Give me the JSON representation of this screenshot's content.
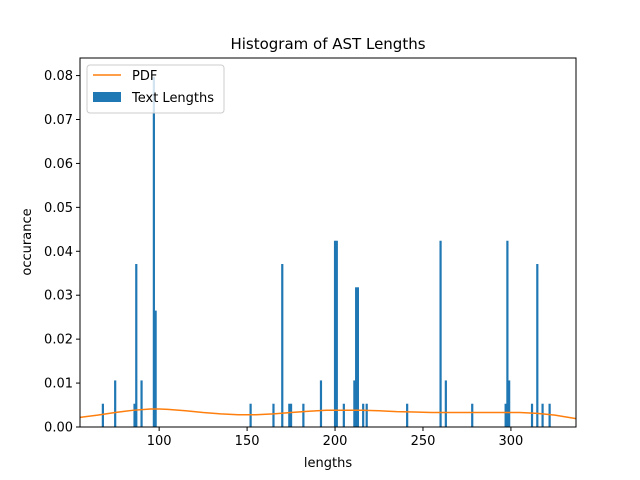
{
  "chart_data": {
    "type": "bar",
    "title": "Histogram of AST Lengths",
    "xlabel": "lengths",
    "ylabel": "occurance",
    "xlim": [
      55,
      337
    ],
    "ylim": [
      0,
      0.084
    ],
    "xticks": [
      100,
      150,
      200,
      250,
      300
    ],
    "yticks": [
      0.0,
      0.01,
      0.02,
      0.03,
      0.04,
      0.05,
      0.06,
      0.07,
      0.08
    ],
    "ytick_labels": [
      "0.00",
      "0.01",
      "0.02",
      "0.03",
      "0.04",
      "0.05",
      "0.06",
      "0.07",
      "0.08"
    ],
    "grid": false,
    "legend_position": "top-left",
    "bar_width": 1.25,
    "series": [
      {
        "name": "Text Lengths",
        "kind": "bar",
        "color": "#1f77b4",
        "x": [
          68,
          75,
          86,
          87,
          90,
          97,
          98,
          152,
          165,
          170,
          174,
          175,
          182,
          192,
          200,
          201,
          205,
          211,
          212,
          213,
          216,
          218,
          241,
          260,
          263,
          278,
          297,
          298,
          299,
          312,
          315,
          318,
          322
        ],
        "values": [
          0.0053,
          0.0106,
          0.0053,
          0.0371,
          0.0106,
          0.0797,
          0.0265,
          0.0053,
          0.0053,
          0.0371,
          0.0053,
          0.0053,
          0.0053,
          0.0106,
          0.0424,
          0.0424,
          0.0053,
          0.0106,
          0.0318,
          0.0318,
          0.0053,
          0.0053,
          0.0053,
          0.0424,
          0.0106,
          0.0053,
          0.0053,
          0.0424,
          0.0106,
          0.0053,
          0.0371,
          0.0053,
          0.0053
        ]
      },
      {
        "name": "PDF",
        "kind": "line",
        "color": "#ff7f0e",
        "x": [
          55,
          65,
          75,
          85,
          95,
          100,
          105,
          115,
          125,
          135,
          145,
          155,
          165,
          175,
          185,
          195,
          205,
          215,
          225,
          235,
          245,
          255,
          265,
          275,
          285,
          295,
          305,
          315,
          325,
          337
        ],
        "values": [
          0.0022,
          0.0027,
          0.0033,
          0.0038,
          0.0041,
          0.0041,
          0.004,
          0.0037,
          0.0033,
          0.003,
          0.0028,
          0.0028,
          0.003,
          0.0033,
          0.0036,
          0.0038,
          0.0038,
          0.0038,
          0.0037,
          0.0035,
          0.0034,
          0.0033,
          0.0033,
          0.0033,
          0.0033,
          0.0033,
          0.0033,
          0.0031,
          0.0027,
          0.0019
        ]
      }
    ]
  }
}
